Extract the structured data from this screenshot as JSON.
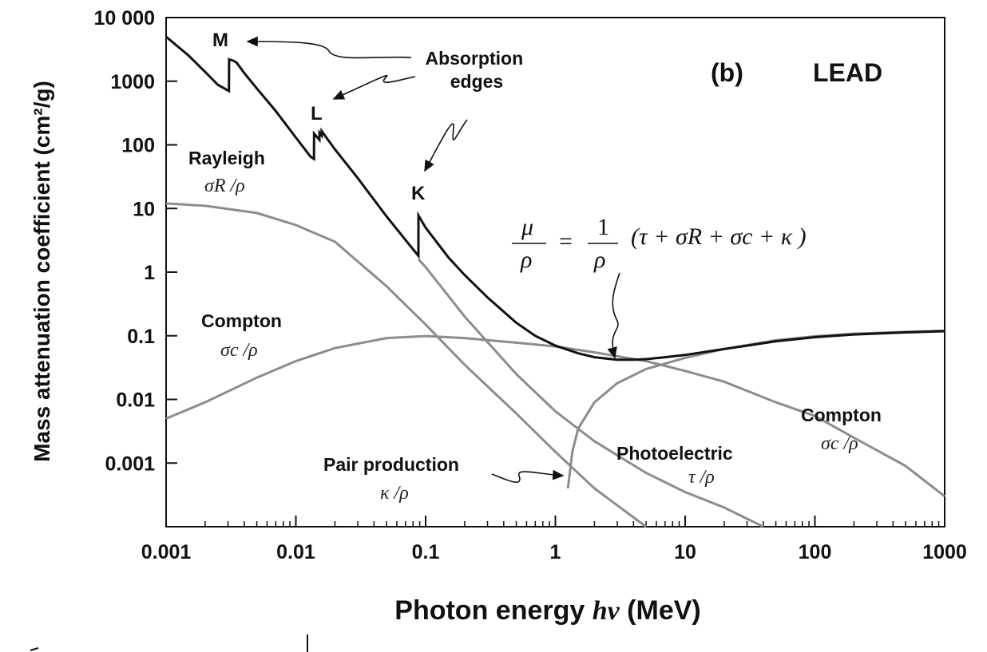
{
  "chart_data": {
    "type": "line",
    "title": "",
    "panel_label": "(b)",
    "material": "LEAD",
    "xlabel_prefix": "Photon energy ",
    "xlabel_var": "hν",
    "xlabel_suffix": " (MeV)",
    "ylabel": "Mass attenuation coefficient  (cm²/g)",
    "x_scale": "log",
    "y_scale": "log",
    "xlim": [
      0.001,
      1000
    ],
    "ylim": [
      0.0001,
      10000
    ],
    "x_ticks": [
      "0.001",
      "0.01",
      "0.1",
      "1",
      "10",
      "100",
      "1000"
    ],
    "y_ticks": [
      "10 000",
      "1000",
      "100",
      "10",
      "1",
      "0.1",
      "0.01",
      "0.001"
    ],
    "grid": false,
    "colors": {
      "total": "#111111",
      "components": "#8c8c8c"
    },
    "series": [
      {
        "key": "total",
        "x": [
          0.001,
          0.0015,
          0.002,
          0.0025,
          0.00305,
          0.00306,
          0.0033,
          0.0035,
          0.004,
          0.005,
          0.007,
          0.01,
          0.013,
          0.0138,
          0.01381,
          0.0152,
          0.01521,
          0.0158,
          0.01581,
          0.02,
          0.03,
          0.05,
          0.07,
          0.088,
          0.08801,
          0.1,
          0.15,
          0.2,
          0.3,
          0.5,
          0.7,
          1,
          1.5,
          2,
          3,
          4,
          5,
          7,
          10,
          20,
          30,
          50,
          100,
          200,
          500,
          1000
        ],
        "y": [
          5000,
          2500,
          1400,
          880,
          700,
          2200,
          2100,
          1950,
          1350,
          770,
          340,
          130,
          65,
          60,
          150,
          120,
          155,
          140,
          165,
          85,
          30,
          7.5,
          3.2,
          1.8,
          7.8,
          5.0,
          1.7,
          0.9,
          0.4,
          0.16,
          0.1,
          0.07,
          0.053,
          0.046,
          0.042,
          0.042,
          0.043,
          0.046,
          0.05,
          0.062,
          0.07,
          0.082,
          0.095,
          0.105,
          0.113,
          0.118
        ]
      },
      {
        "key": "rayleigh",
        "x": [
          0.001,
          0.002,
          0.005,
          0.01,
          0.02,
          0.05,
          0.1,
          0.2,
          0.5,
          1,
          2,
          5
        ],
        "y": [
          12,
          11,
          8.5,
          5.5,
          3,
          0.6,
          0.15,
          0.035,
          0.006,
          0.0015,
          0.0004,
          0.0001
        ]
      },
      {
        "key": "compton",
        "x": [
          0.001,
          0.002,
          0.005,
          0.01,
          0.02,
          0.05,
          0.1,
          0.2,
          0.5,
          1,
          2,
          5,
          10,
          20,
          50,
          100,
          200,
          500,
          1000
        ],
        "y": [
          0.005,
          0.009,
          0.022,
          0.04,
          0.064,
          0.092,
          0.099,
          0.092,
          0.078,
          0.068,
          0.055,
          0.04,
          0.028,
          0.019,
          0.009,
          0.0055,
          0.0025,
          0.0009,
          0.0003
        ]
      },
      {
        "key": "photoelectric",
        "x": [
          0.088,
          0.1,
          0.2,
          0.5,
          1,
          2,
          5,
          10,
          20,
          40
        ],
        "y": [
          1.6,
          1.2,
          0.2,
          0.025,
          0.0065,
          0.0022,
          0.0007,
          0.00035,
          0.0002,
          0.0001
        ]
      },
      {
        "key": "pair",
        "x": [
          1.25,
          1.35,
          1.5,
          2,
          3,
          5,
          10,
          20,
          50,
          100,
          200,
          500,
          1000
        ],
        "y": [
          0.0004,
          0.0015,
          0.0035,
          0.009,
          0.018,
          0.03,
          0.045,
          0.062,
          0.085,
          0.098,
          0.108,
          0.115,
          0.12
        ]
      }
    ],
    "annotations": {
      "edge_M": "M",
      "edge_L": "L",
      "edge_K": "K",
      "absorption_line1": "Absorption",
      "absorption_line2": "edges",
      "rayleigh_name": "Rayleigh",
      "rayleigh_symbol": "σR /ρ",
      "compton_left_name": "Compton",
      "compton_left_symbol": "σc /ρ",
      "compton_right_name": "Compton",
      "compton_right_symbol": "σc /ρ",
      "photoelectric_name": "Photoelectric",
      "photoelectric_symbol": "τ /ρ",
      "pair_name": "Pair production",
      "pair_symbol": "κ /ρ",
      "formula_num1": "μ",
      "formula_den1": "ρ",
      "formula_eq": "=",
      "formula_num2": "1",
      "formula_den2": "ρ",
      "formula_body": "(τ + σR + σc + κ )"
    }
  }
}
